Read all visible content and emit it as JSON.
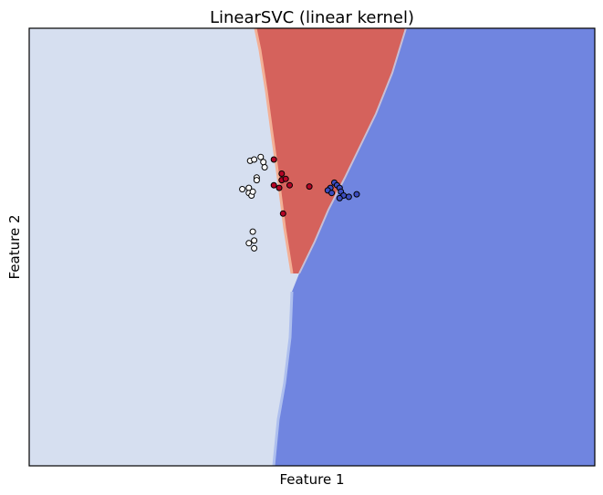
{
  "chart_data": {
    "type": "scatter",
    "title": "LinearSVC (linear kernel)",
    "xlabel": "Feature 1",
    "ylabel": "Feature 2",
    "xlim": [
      -0.5,
      3.8
    ],
    "ylim": [
      -0.6,
      2.8
    ],
    "xticks": [],
    "yticks": [],
    "grid": false,
    "legend": "none",
    "background": "decision regions (3 classes) with filled contours",
    "regions": [
      {
        "class": 0,
        "color": "#d6dff0"
      },
      {
        "class": 1,
        "color": "#d5625c"
      },
      {
        "class": 2,
        "color": "#7085e0"
      }
    ],
    "series": [
      {
        "class": 0,
        "color": "#ffffff",
        "points": [
          [
            1.18,
            1.77
          ],
          [
            1.21,
            1.78
          ],
          [
            1.26,
            1.8
          ],
          [
            1.29,
            1.72
          ],
          [
            1.28,
            1.76
          ],
          [
            1.23,
            1.64
          ],
          [
            1.23,
            1.62
          ],
          [
            1.17,
            1.56
          ],
          [
            1.17,
            1.52
          ],
          [
            1.19,
            1.5
          ],
          [
            1.2,
            1.53
          ],
          [
            1.12,
            1.55
          ],
          [
            1.2,
            1.22
          ],
          [
            1.21,
            1.15
          ],
          [
            1.17,
            1.13
          ],
          [
            1.21,
            1.09
          ]
        ]
      },
      {
        "class": 1,
        "color": "#b40426",
        "points": [
          [
            1.36,
            1.78
          ],
          [
            1.42,
            1.67
          ],
          [
            1.42,
            1.62
          ],
          [
            1.45,
            1.63
          ],
          [
            1.48,
            1.58
          ],
          [
            1.36,
            1.58
          ],
          [
            1.4,
            1.56
          ],
          [
            1.63,
            1.57
          ],
          [
            1.43,
            1.36
          ]
        ]
      },
      {
        "class": 2,
        "color": "#3b4cc0",
        "points": [
          [
            1.82,
            1.6
          ],
          [
            1.84,
            1.58
          ],
          [
            1.79,
            1.56
          ],
          [
            1.77,
            1.54
          ],
          [
            1.86,
            1.56
          ],
          [
            1.87,
            1.53
          ],
          [
            1.8,
            1.52
          ],
          [
            1.89,
            1.5
          ],
          [
            1.93,
            1.49
          ],
          [
            1.99,
            1.51
          ],
          [
            1.86,
            1.48
          ]
        ]
      }
    ]
  }
}
